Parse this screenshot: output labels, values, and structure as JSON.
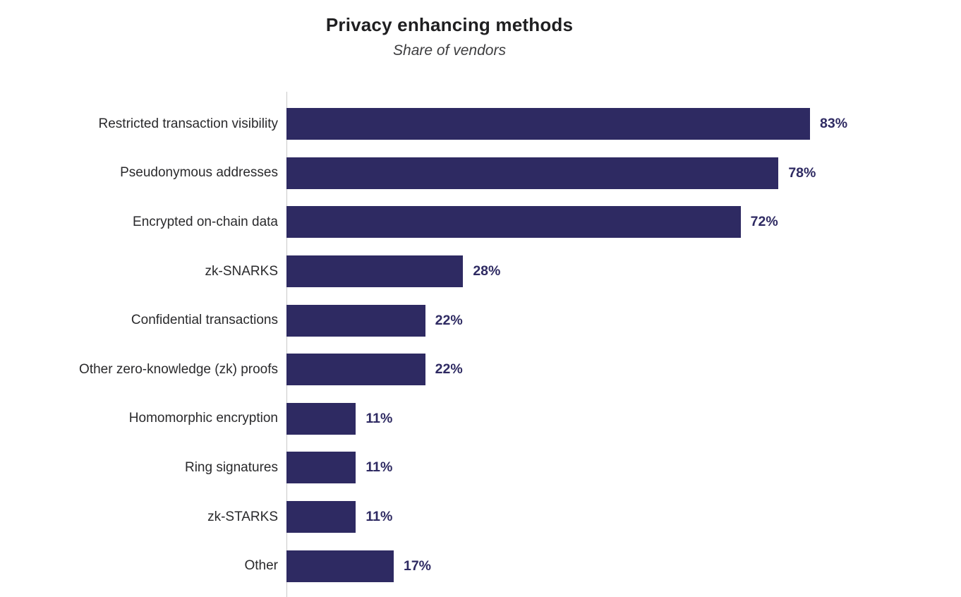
{
  "chart_data": {
    "type": "bar",
    "orientation": "horizontal",
    "title": "Privacy enhancing methods",
    "subtitle": "Share of vendors",
    "categories": [
      "Restricted transaction visibility",
      "Pseudonymous addresses",
      "Encrypted on-chain data",
      "zk-SNARKS",
      "Confidential transactions",
      "Other zero-knowledge (zk) proofs",
      "Homomorphic encryption",
      "Ring signatures",
      "zk-STARKS",
      "Other"
    ],
    "values": [
      83,
      78,
      72,
      28,
      22,
      22,
      11,
      11,
      11,
      17
    ],
    "value_labels": [
      "83%",
      "78%",
      "72%",
      "28%",
      "22%",
      "22%",
      "11%",
      "11%",
      "11%",
      "17%"
    ],
    "unit": "%",
    "xlabel": "",
    "ylabel": "",
    "xlim": [
      0,
      100
    ],
    "grid": false,
    "legend": "none",
    "bar_color": "#2e2a62",
    "value_label_color": "#2e2a62",
    "axis_line_color": "#c9c9c9"
  }
}
